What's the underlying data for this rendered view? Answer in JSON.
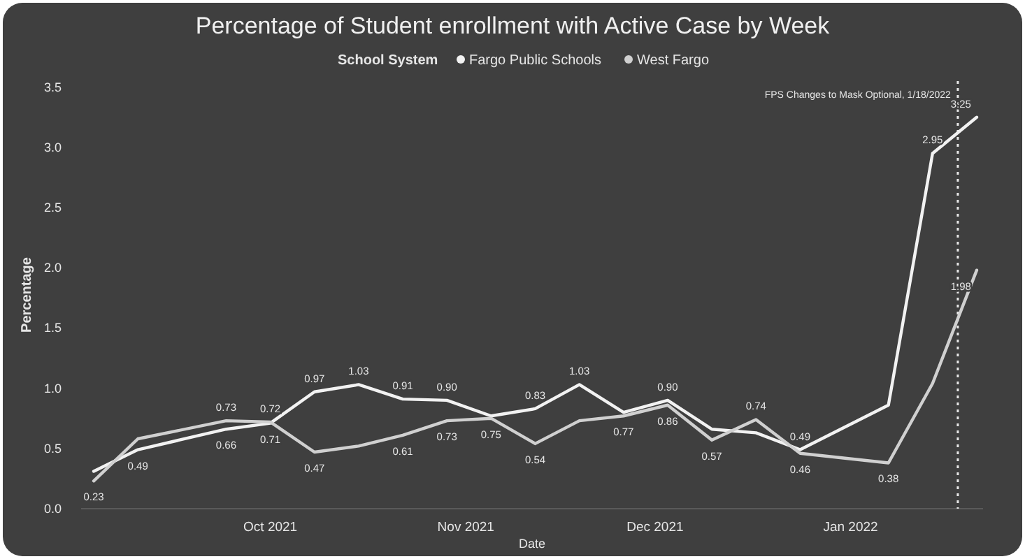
{
  "chart_data": {
    "type": "line",
    "title": "Percentage of Student enrollment with Active Case by Week",
    "xlabel": "Date",
    "ylabel": "Percentage",
    "legend_title": "School System",
    "legend": "top",
    "marker": "none",
    "line_style": "solid",
    "grid": false,
    "x": [
      "2021-09-03",
      "2021-09-10",
      "2021-09-24",
      "2021-10-01",
      "2021-10-08",
      "2021-10-15",
      "2021-10-22",
      "2021-10-29",
      "2021-11-05",
      "2021-11-12",
      "2021-11-19",
      "2021-11-26",
      "2021-12-03",
      "2021-12-10",
      "2021-12-17",
      "2021-12-24",
      "2022-01-07",
      "2022-01-14",
      "2022-01-21"
    ],
    "xlim": [
      "2021-09-01",
      "2022-01-22"
    ],
    "xticks": [
      {
        "value": "2021-10-01",
        "label": "Oct 2021"
      },
      {
        "value": "2021-11-01",
        "label": "Nov 2021"
      },
      {
        "value": "2021-12-01",
        "label": "Dec 2021"
      },
      {
        "value": "2022-01-01",
        "label": "Jan 2022"
      }
    ],
    "ylim": [
      0,
      3.55
    ],
    "yticks": [
      {
        "value": 0,
        "label": "0.0"
      },
      {
        "value": 0.5,
        "label": "0.5"
      },
      {
        "value": 1,
        "label": "1.0"
      },
      {
        "value": 1.5,
        "label": "1.5"
      },
      {
        "value": 2,
        "label": "2.0"
      },
      {
        "value": 2.5,
        "label": "2.5"
      },
      {
        "value": 3,
        "label": "3.0"
      },
      {
        "value": 3.5,
        "label": "3.5"
      }
    ],
    "series": [
      {
        "name": "Fargo Public Schools",
        "color": "#f2f2f2",
        "values": [
          0.31,
          0.49,
          0.66,
          0.71,
          0.97,
          1.03,
          0.91,
          0.9,
          0.77,
          0.83,
          1.03,
          0.8,
          0.9,
          0.66,
          0.63,
          0.49,
          0.86,
          2.95,
          3.25
        ],
        "value_labels": [
          null,
          "0.49",
          "0.66",
          "0.71",
          "0.97",
          "1.03",
          "0.91",
          "0.90",
          null,
          "0.83",
          "1.03",
          null,
          "0.90",
          null,
          null,
          "0.49",
          null,
          "2.95",
          "3.25"
        ]
      },
      {
        "name": "West Fargo",
        "color": "#d0d0d0",
        "values": [
          0.23,
          0.58,
          0.73,
          0.72,
          0.47,
          0.52,
          0.61,
          0.73,
          0.75,
          0.54,
          0.73,
          0.77,
          0.86,
          0.57,
          0.74,
          0.46,
          0.38,
          1.04,
          1.98
        ],
        "value_labels": [
          "0.23",
          null,
          "0.73",
          "0.72",
          "0.47",
          null,
          "0.61",
          "0.73",
          "0.75",
          "0.54",
          null,
          "0.77",
          "0.86",
          "0.57",
          "0.74",
          "0.46",
          "0.38",
          null,
          "1.98"
        ]
      }
    ],
    "ref_lines": [
      {
        "axis": "x",
        "value": "2022-01-18",
        "label": "FPS Changes to Mask Optional, 1/18/2022",
        "color": "#e8e8e8",
        "line_style": "dotted"
      }
    ]
  }
}
